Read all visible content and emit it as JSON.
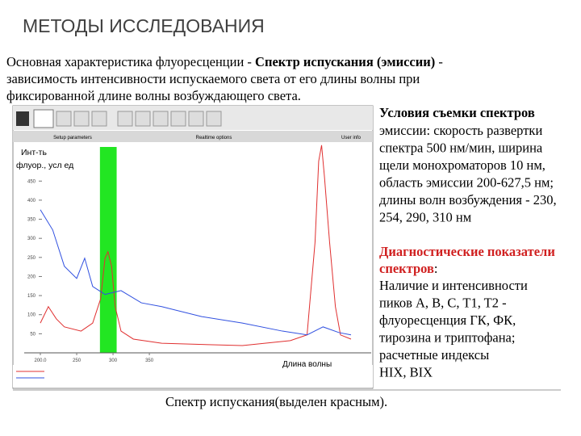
{
  "header": {
    "title": "МЕТОДЫ ИССЛЕДОВАНИЯ"
  },
  "intro": {
    "line1": {
      "plain": " Основная характеристика флуоресценции - ",
      "bold": "Спектр испускания (эмиссии)",
      "tail": " -"
    },
    "line2": "зависимость интенсивности испускаемого света от  его длины волны при",
    "line3": "фиксированной длине волны возбуждающего света."
  },
  "conditions": {
    "heading": "Условия съемки спектров",
    "lines": [
      "эмиссии: скорость развертки",
      "спектра  500  нм/мин, ширина",
      "щели монохроматоров 10 нм,",
      "область эмиссии 200-627,5 нм;",
      "длины волн возбуждения - 230,",
      "254, 290, 310 нм"
    ]
  },
  "diagnostics": {
    "heading": [
      "Диагностические показатели",
      "спектров"
    ],
    "colon": ":",
    "lines": [
      "Наличие и интенсивности",
      "пиков A, B, C, T1, T2 -",
      "флуоресценция ГК, ФК,",
      "тирозина и триптофана;",
      "расчетные индексы",
      "HIX, BIX"
    ]
  },
  "screenshot": {
    "tabs": [
      "Setup parameters",
      "Realtime options",
      "User info"
    ]
  },
  "chart_data": {
    "type": "line",
    "y_label": [
      "Инт-ть",
      "флуор., усл ед"
    ],
    "x_label": "Длина волны",
    "xlim": [
      200,
      627.5
    ],
    "ylim": [
      0,
      550
    ],
    "xticks": [
      {
        "value": 200,
        "label": "200.0"
      },
      250,
      300,
      350
    ],
    "yticks": [
      50,
      100,
      150,
      200,
      250,
      300,
      350,
      400,
      450
    ],
    "highlight": {
      "range": [
        282,
        305
      ],
      "color": "#22e622"
    },
    "series": [
      {
        "color": "#e03030",
        "x": [
          200,
          211,
          222,
          233,
          256,
          272,
          283,
          289,
          293,
          298,
          303,
          311,
          328,
          367,
          478,
          544,
          567,
          578,
          583,
          587,
          591,
          598,
          606,
          613,
          627.5
        ],
        "values": [
          78,
          121,
          89,
          68,
          57,
          78,
          142,
          248,
          265,
          227,
          121,
          57,
          36,
          25,
          19,
          32,
          47,
          290,
          502,
          544,
          460,
          290,
          121,
          47,
          36
        ]
      },
      {
        "color": "#3050e0",
        "x": [
          200,
          217,
          233,
          250,
          261,
          272,
          289,
          311,
          339,
          367,
          422,
          478,
          533,
          567,
          589,
          611,
          627.5
        ],
        "values": [
          375,
          322,
          227,
          195,
          248,
          174,
          153,
          163,
          131,
          121,
          95,
          78,
          57,
          47,
          68,
          53,
          47
        ]
      }
    ]
  },
  "caption": "Спектр испускания(выделен красным)."
}
